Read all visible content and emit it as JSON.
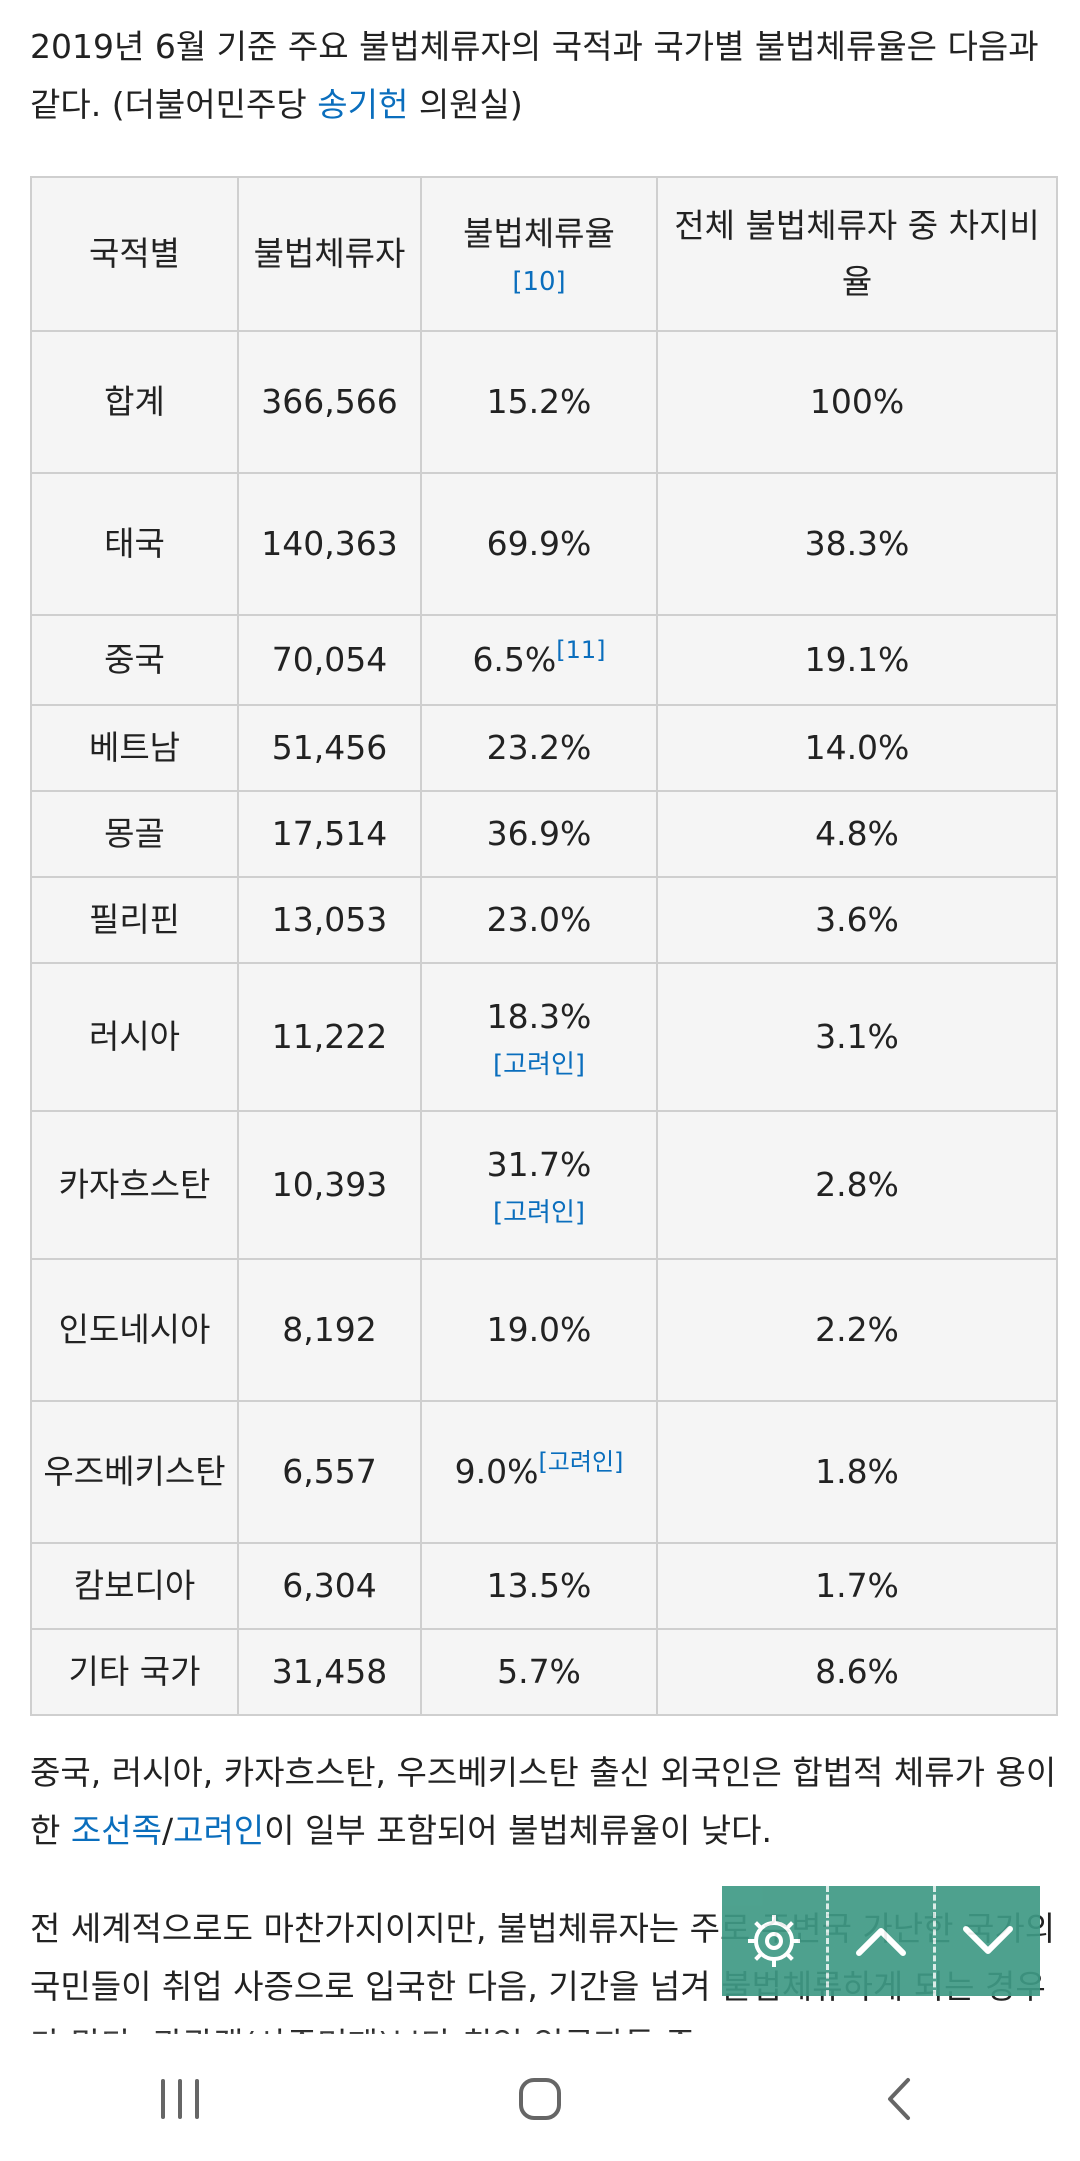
{
  "intro": {
    "text_before": "2019년 6월 기준 주요 불법체류자의 국적과 국가별 불법체류율은 다음과 같다. (더불어민주당 ",
    "link": "송기헌",
    "text_after": " 의원실)"
  },
  "table": {
    "headers": {
      "country": "국적별",
      "count": "불법체류자",
      "rate": "불법체류율",
      "rate_ref": "[10]",
      "share": "전체 불법체류자 중 차지비율"
    },
    "rows": [
      {
        "country": "합계",
        "count": "366,566",
        "rate": "15.2%",
        "share": "100%"
      },
      {
        "country": "태국",
        "count": "140,363",
        "rate": "69.9%",
        "share": "38.3%"
      },
      {
        "country": "중국",
        "count": "70,054",
        "rate": "6.5%",
        "rate_ref": "[11]",
        "share": "19.1%"
      },
      {
        "country": "베트남",
        "count": "51,456",
        "rate": "23.2%",
        "share": "14.0%"
      },
      {
        "country": "몽골",
        "count": "17,514",
        "rate": "36.9%",
        "share": "4.8%"
      },
      {
        "country": "필리핀",
        "count": "13,053",
        "rate": "23.0%",
        "share": "3.6%"
      },
      {
        "country": "러시아",
        "count": "11,222",
        "rate": "18.3%",
        "rate_ref": "[고려인]",
        "share": "3.1%"
      },
      {
        "country": "카자흐스탄",
        "count": "10,393",
        "rate": "31.7%",
        "rate_ref": "[고려인]",
        "share": "2.8%"
      },
      {
        "country": "인도네시아",
        "count": "8,192",
        "rate": "19.0%",
        "share": "2.2%"
      },
      {
        "country": "우즈베키스탄",
        "count": "6,557",
        "rate": "9.0%",
        "rate_ref": "[고려인]",
        "share": "1.8%"
      },
      {
        "country": "캄보디아",
        "count": "6,304",
        "rate": "13.5%",
        "share": "1.7%"
      },
      {
        "country": "기타 국가",
        "count": "31,458",
        "rate": "5.7%",
        "share": "8.6%"
      }
    ]
  },
  "note": {
    "text_before": "중국, 러시아, 카자흐스탄, 우즈베키스탄 출신 외국인은 합법적 체류가 용이한 ",
    "link1": "조선족",
    "sep": "/",
    "link2": "고려인",
    "text_after": "이 일부 포함되어 불법체류율이 낮다."
  },
  "para2": {
    "text": "전 세계적으로도 마찬가지이지만, 불법체류자는 주로 주변국 가난한 국가의 국민들이 취업 사증으로 입국한 다음, 기간을 넘겨 불법체류하게 되는 경우가 많다. 관광객(사증면제)보다 취업 입국자들 중..."
  },
  "floating_toolbar": {
    "icons": [
      "gear-icon",
      "chevron-up-icon",
      "chevron-down-icon"
    ],
    "color": "#3f9a85"
  },
  "navbar": {
    "icons": [
      "recent-apps-icon",
      "home-icon",
      "back-icon"
    ]
  }
}
